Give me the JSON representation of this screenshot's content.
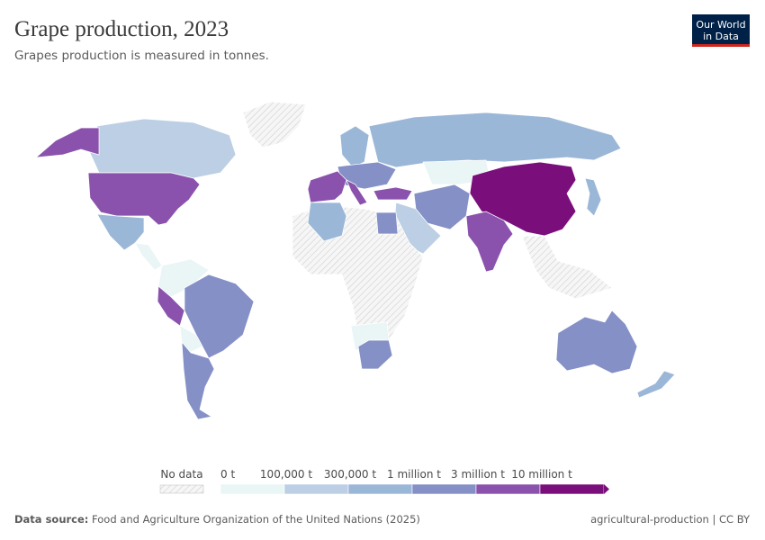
{
  "header": {
    "title": "Grape production, 2023",
    "subtitle": "Grapes production is measured in tonnes."
  },
  "logo": {
    "lines": [
      "Our World",
      "in Data"
    ]
  },
  "legend": {
    "no_data": "No data",
    "bins": [
      {
        "label": "0 t",
        "color": "#eaf5f6"
      },
      {
        "label": "100,000 t",
        "color": "#bccfe4"
      },
      {
        "label": "300,000 t",
        "color": "#9bb7d8"
      },
      {
        "label": "1 million t",
        "color": "#8490c6"
      },
      {
        "label": "3 million t",
        "color": "#8b52ad"
      },
      {
        "label": "10 million t",
        "color": "#7a0f7c"
      }
    ]
  },
  "footer": {
    "source_label": "Data source:",
    "source": "Food and Agriculture Organization of the United Nations (2025)",
    "license": "agricultural-production | CC BY"
  }
}
